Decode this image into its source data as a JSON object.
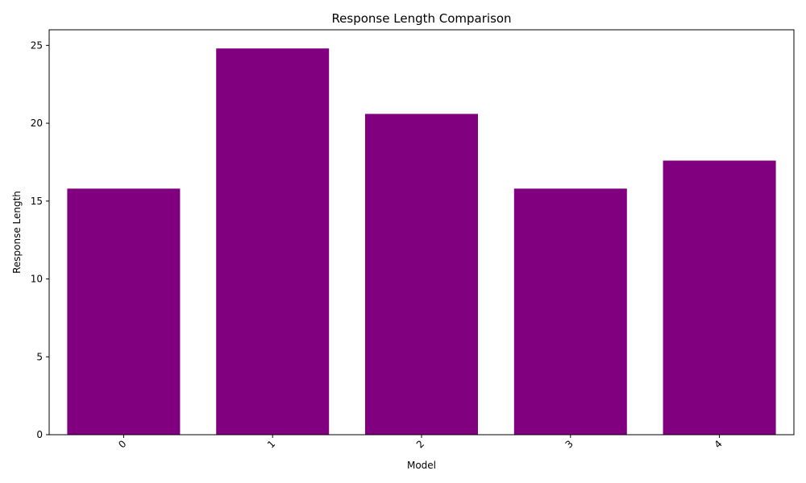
{
  "chart_data": {
    "type": "bar",
    "title": "Response Length Comparison",
    "xlabel": "Model",
    "ylabel": "Response Length",
    "categories": [
      "0",
      "1",
      "2",
      "3",
      "4"
    ],
    "values": [
      15.8,
      24.8,
      20.6,
      15.8,
      17.6
    ],
    "ylim": [
      0,
      26.0
    ],
    "yticks": [
      0,
      5,
      10,
      15,
      20,
      25
    ],
    "bar_color": "#800080",
    "grid": false,
    "legend": "none",
    "xtick_rotation": "45deg"
  }
}
